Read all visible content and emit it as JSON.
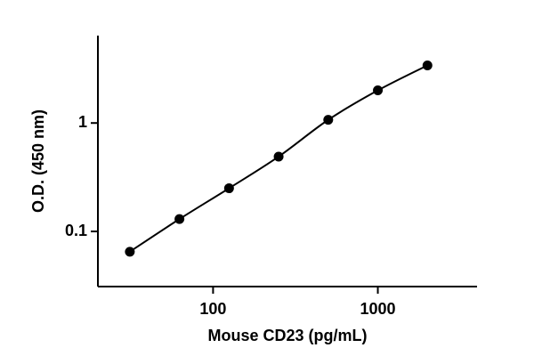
{
  "chart_data": {
    "type": "line",
    "x_label": "Mouse CD23 (pg/mL)",
    "y_label": "O.D. (450 nm)",
    "x": [
      31.25,
      62.5,
      125,
      250,
      500,
      1000,
      2000
    ],
    "values": [
      0.065,
      0.13,
      0.25,
      0.49,
      1.07,
      2.0,
      3.4
    ],
    "color": "#000000",
    "xscale": "log",
    "yscale": "log",
    "xlim": [
      20,
      4000
    ],
    "ylim": [
      0.031,
      6.4
    ],
    "xticks": [
      100,
      1000
    ],
    "yticks": [
      0.1,
      1
    ]
  }
}
